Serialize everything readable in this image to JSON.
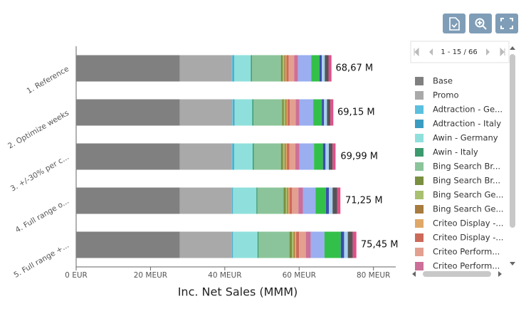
{
  "chart_data": {
    "type": "stacked-bar-horizontal",
    "x_label": "Inc. Net Sales (MMM)",
    "categories": [
      "1. Reference",
      "2. Optimize weeks",
      "3. +/-30% per c...",
      "4. Full range o...",
      "5. Full range +..."
    ],
    "xlim": [
      0,
      86
    ],
    "xticks": [
      {
        "value": 0,
        "label": "0 EUR"
      },
      {
        "value": 20,
        "label": "20 MEUR"
      },
      {
        "value": 40,
        "label": "40 MEUR"
      },
      {
        "value": 60,
        "label": "60 MEUR"
      },
      {
        "value": 80,
        "label": "80 MEUR"
      }
    ],
    "series": [
      {
        "name": "Base",
        "color": "#808080",
        "values": [
          27.9,
          27.9,
          27.9,
          27.9,
          27.9
        ]
      },
      {
        "name": "Promo",
        "color": "#a9a9a9",
        "values": [
          14.0,
          14.1,
          14.0,
          13.9,
          13.9
        ]
      },
      {
        "name": "Adtraction - Ge...",
        "color": "#5bc0de",
        "values": [
          0.3,
          0.3,
          0.3,
          0.2,
          0.2
        ]
      },
      {
        "name": "Adtraction - Italy",
        "color": "#3a9cc0",
        "values": [
          0.3,
          0.3,
          0.3,
          0.2,
          0.2
        ]
      },
      {
        "name": "Awin - Germany",
        "color": "#8fe0dc",
        "values": [
          4.5,
          4.8,
          5.0,
          6.3,
          6.6
        ]
      },
      {
        "name": "Awin - Italy",
        "color": "#3c9a6e",
        "values": [
          0.3,
          0.3,
          0.3,
          0.3,
          0.3
        ]
      },
      {
        "name": "Bing Search Br...",
        "color": "#8bc49a",
        "values": [
          7.8,
          7.7,
          7.3,
          7.0,
          8.3
        ]
      },
      {
        "name": "Bing Search Br...",
        "color": "#7a8f3f",
        "values": [
          0.5,
          0.5,
          0.6,
          0.6,
          0.7
        ]
      },
      {
        "name": "Bing Search Ge...",
        "color": "#a8c070",
        "values": [
          0.4,
          0.4,
          0.4,
          0.4,
          0.4
        ]
      },
      {
        "name": "Bing Search Ge...",
        "color": "#a87c3e",
        "values": [
          0.3,
          0.3,
          0.3,
          0.3,
          0.3
        ]
      },
      {
        "name": "Criteo Display -...",
        "color": "#e0a868",
        "values": [
          0.3,
          0.3,
          0.3,
          0.3,
          0.4
        ]
      },
      {
        "name": "Criteo Display -...",
        "color": "#cc6a5a",
        "values": [
          0.6,
          0.6,
          0.7,
          0.7,
          0.8
        ]
      },
      {
        "name": "Criteo Perform...",
        "color": "#e3a090",
        "values": [
          1.5,
          1.6,
          1.6,
          1.7,
          1.8
        ]
      },
      {
        "name": "Criteo Perform...",
        "color": "#cc6f98",
        "values": [
          1.0,
          1.0,
          1.1,
          1.2,
          1.3
        ]
      },
      {
        "color": "#9aaef0",
        "values": [
          3.6,
          3.7,
          3.9,
          3.4,
          3.7
        ]
      },
      {
        "color": "#33c04a",
        "values": [
          2.2,
          2.3,
          2.4,
          2.8,
          4.4
        ]
      },
      {
        "color": "#3a4fa8",
        "values": [
          0.6,
          0.6,
          0.7,
          0.8,
          0.9
        ]
      },
      {
        "color": "#a8d0f0",
        "values": [
          0.8,
          0.8,
          0.9,
          1.0,
          1.0
        ]
      },
      {
        "color": "#555555",
        "values": [
          1.0,
          0.9,
          1.0,
          1.2,
          1.3
        ]
      },
      {
        "color": "#e0508a",
        "values": [
          0.8,
          0.8,
          0.8,
          0.9,
          1.0
        ]
      }
    ],
    "totals": {
      "values": [
        68.67,
        69.15,
        69.99,
        71.25,
        75.45
      ],
      "value_labels": [
        "68,67 M",
        "69,15 M",
        "69,99 M",
        "71,25 M",
        "75,45 M"
      ]
    },
    "legend_pager": "1 - 15 / 66"
  }
}
